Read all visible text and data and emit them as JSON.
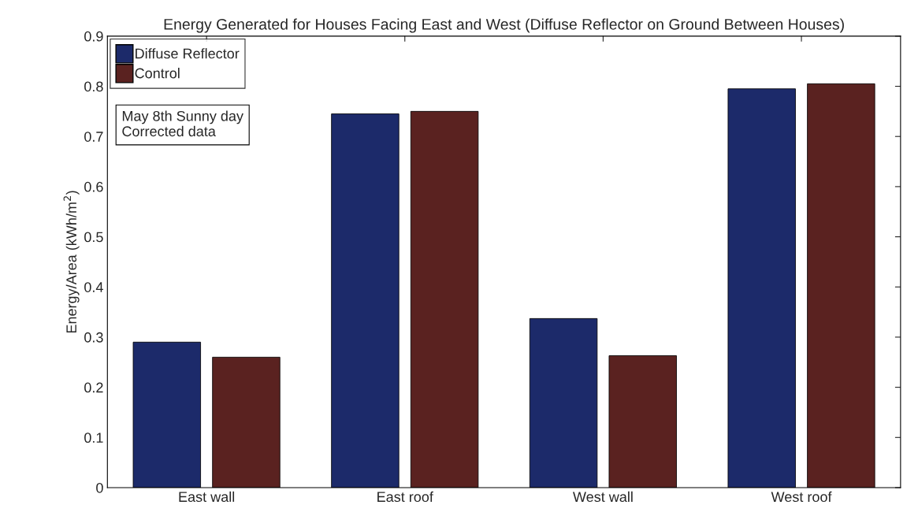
{
  "chart_data": {
    "type": "bar",
    "title": "Energy Generated for Houses Facing East and West (Diffuse Reflector on Ground Between Houses)",
    "ylabel": "Energy/Area (kWh/m$^{2}$)",
    "categories": [
      "East wall",
      "East roof",
      "West wall",
      "West roof"
    ],
    "series": [
      {
        "name": "Diffuse Reflector",
        "color": "#1c2a6a",
        "values": [
          0.29,
          0.745,
          0.337,
          0.795
        ]
      },
      {
        "name": "Control",
        "color": "#5a2220",
        "values": [
          0.26,
          0.75,
          0.263,
          0.805
        ]
      }
    ],
    "ylim": [
      0,
      0.9
    ],
    "yticks": [
      0,
      0.1,
      0.2,
      0.3,
      0.4,
      0.5,
      0.6,
      0.7,
      0.8,
      0.9
    ],
    "grid": false,
    "legend": "top left",
    "annotations": [
      "May 8th Sunny day Corrected data"
    ]
  }
}
